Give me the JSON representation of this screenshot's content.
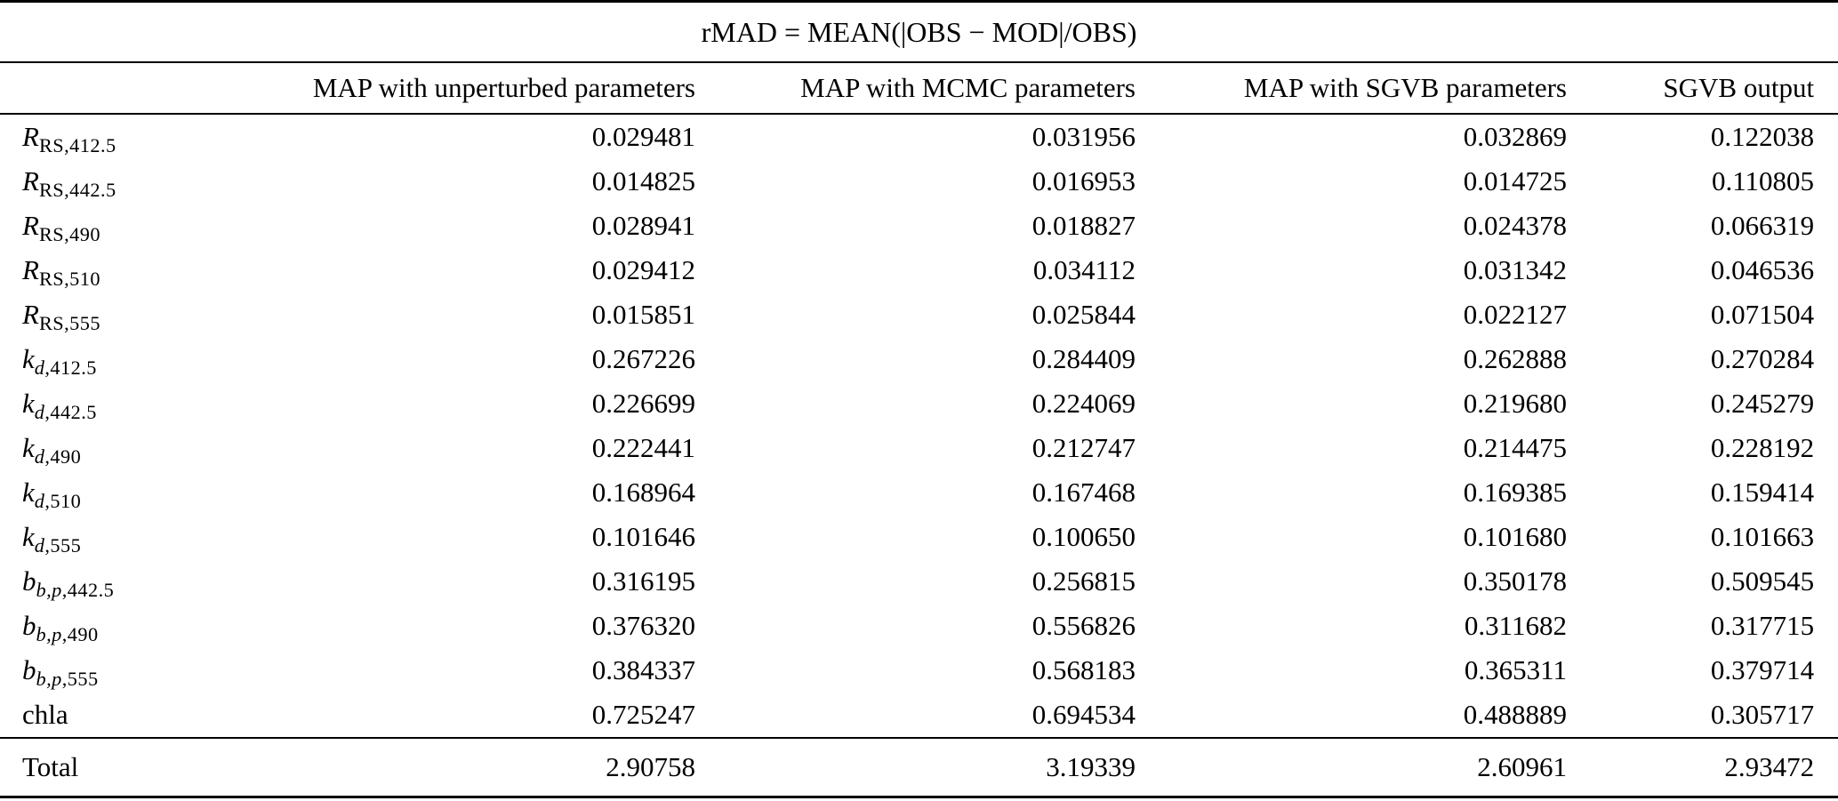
{
  "colors": {
    "background": "#ffffff",
    "text": "#000000",
    "rule": "#000000"
  },
  "table": {
    "title": "rMAD = MEAN(|OBS − MOD|/OBS)",
    "columns": [
      "MAP with unperturbed parameters",
      "MAP with MCMC parameters",
      "MAP with SGVB parameters",
      "SGVB output"
    ],
    "rows": [
      {
        "label_text": "R_RS,412.5",
        "label_parts": [
          {
            "t": "R",
            "style": "it"
          },
          {
            "t": "RS,412.5",
            "style": "sub"
          }
        ],
        "values": [
          "0.029481",
          "0.031956",
          "0.032869",
          "0.122038"
        ]
      },
      {
        "label_text": "R_RS,442.5",
        "label_parts": [
          {
            "t": "R",
            "style": "it"
          },
          {
            "t": "RS,442.5",
            "style": "sub"
          }
        ],
        "values": [
          "0.014825",
          "0.016953",
          "0.014725",
          "0.110805"
        ]
      },
      {
        "label_text": "R_RS,490",
        "label_parts": [
          {
            "t": "R",
            "style": "it"
          },
          {
            "t": "RS,490",
            "style": "sub"
          }
        ],
        "values": [
          "0.028941",
          "0.018827",
          "0.024378",
          "0.066319"
        ]
      },
      {
        "label_text": "R_RS,510",
        "label_parts": [
          {
            "t": "R",
            "style": "it"
          },
          {
            "t": "RS,510",
            "style": "sub"
          }
        ],
        "values": [
          "0.029412",
          "0.034112",
          "0.031342",
          "0.046536"
        ]
      },
      {
        "label_text": "R_RS,555",
        "label_parts": [
          {
            "t": "R",
            "style": "it"
          },
          {
            "t": "RS,555",
            "style": "sub"
          }
        ],
        "values": [
          "0.015851",
          "0.025844",
          "0.022127",
          "0.071504"
        ]
      },
      {
        "label_text": "k_d,412.5",
        "label_parts": [
          {
            "t": "k",
            "style": "it"
          },
          {
            "t": "d",
            "style": "subit"
          },
          {
            "t": ",412.5",
            "style": "sub"
          }
        ],
        "values": [
          "0.267226",
          "0.284409",
          "0.262888",
          "0.270284"
        ]
      },
      {
        "label_text": "k_d,442.5",
        "label_parts": [
          {
            "t": "k",
            "style": "it"
          },
          {
            "t": "d",
            "style": "subit"
          },
          {
            "t": ",442.5",
            "style": "sub"
          }
        ],
        "values": [
          "0.226699",
          "0.224069",
          "0.219680",
          "0.245279"
        ]
      },
      {
        "label_text": "k_d,490",
        "label_parts": [
          {
            "t": "k",
            "style": "it"
          },
          {
            "t": "d",
            "style": "subit"
          },
          {
            "t": ",490",
            "style": "sub"
          }
        ],
        "values": [
          "0.222441",
          "0.212747",
          "0.214475",
          "0.228192"
        ]
      },
      {
        "label_text": "k_d,510",
        "label_parts": [
          {
            "t": "k",
            "style": "it"
          },
          {
            "t": "d",
            "style": "subit"
          },
          {
            "t": ",510",
            "style": "sub"
          }
        ],
        "values": [
          "0.168964",
          "0.167468",
          "0.169385",
          "0.159414"
        ]
      },
      {
        "label_text": "k_d,555",
        "label_parts": [
          {
            "t": "k",
            "style": "it"
          },
          {
            "t": "d",
            "style": "subit"
          },
          {
            "t": ",555",
            "style": "sub"
          }
        ],
        "values": [
          "0.101646",
          "0.100650",
          "0.101680",
          "0.101663"
        ]
      },
      {
        "label_text": "b_b,p,442.5",
        "label_parts": [
          {
            "t": "b",
            "style": "it"
          },
          {
            "t": "b,p",
            "style": "subit"
          },
          {
            "t": ",442.5",
            "style": "sub"
          }
        ],
        "values": [
          "0.316195",
          "0.256815",
          "0.350178",
          "0.509545"
        ]
      },
      {
        "label_text": "b_b,p,490",
        "label_parts": [
          {
            "t": "b",
            "style": "it"
          },
          {
            "t": "b,p",
            "style": "subit"
          },
          {
            "t": ",490",
            "style": "sub"
          }
        ],
        "values": [
          "0.376320",
          "0.556826",
          "0.311682",
          "0.317715"
        ]
      },
      {
        "label_text": "b_b,p,555",
        "label_parts": [
          {
            "t": "b",
            "style": "it"
          },
          {
            "t": "b,p",
            "style": "subit"
          },
          {
            "t": ",555",
            "style": "sub"
          }
        ],
        "values": [
          "0.384337",
          "0.568183",
          "0.365311",
          "0.379714"
        ]
      },
      {
        "label_text": "chla",
        "label_parts": [
          {
            "t": "chla",
            "style": "plain"
          }
        ],
        "values": [
          "0.725247",
          "0.694534",
          "0.488889",
          "0.305717"
        ]
      }
    ],
    "total": {
      "label": "Total",
      "values": [
        "2.90758",
        "3.19339",
        "2.60961",
        "2.93472"
      ]
    }
  }
}
